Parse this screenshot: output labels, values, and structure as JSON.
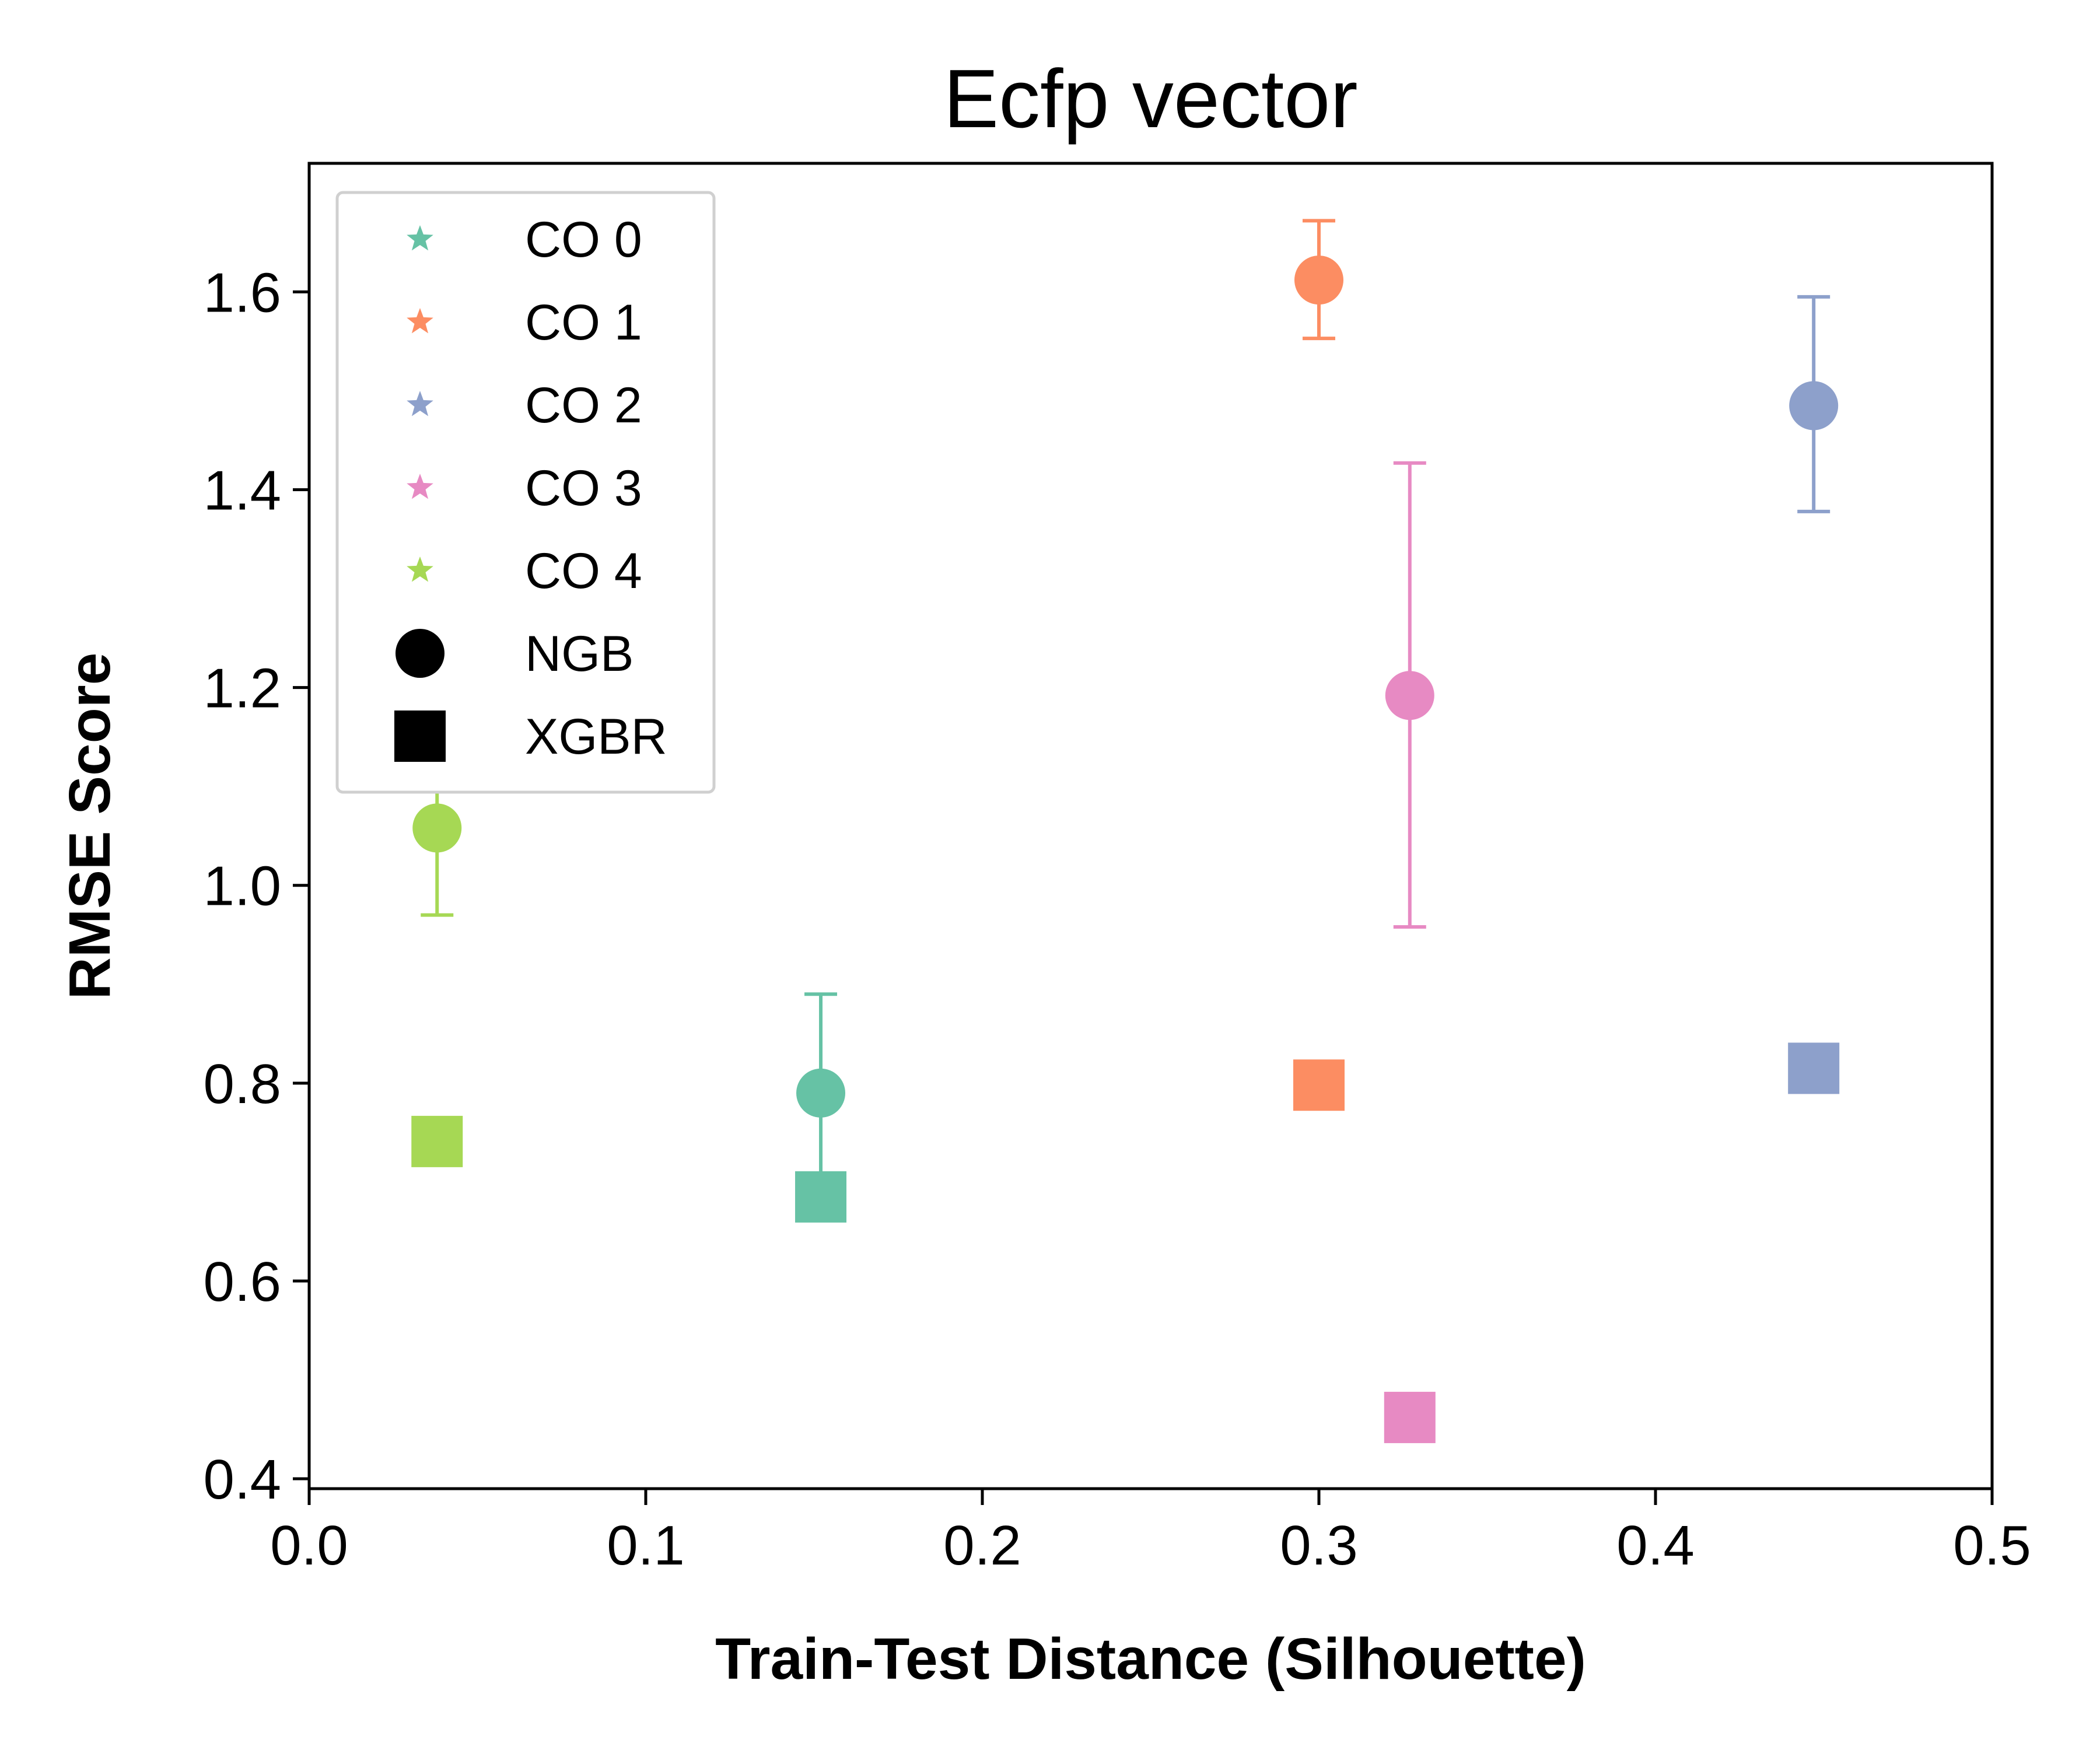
{
  "chart_data": {
    "type": "scatter",
    "title": "Ecfp vector",
    "xlabel": "Train-Test Distance (Silhouette)",
    "ylabel": "RMSE Score",
    "xlim": [
      0.0,
      0.5
    ],
    "ylim": [
      0.39,
      1.73
    ],
    "xticks": [
      "0.0",
      "0.1",
      "0.2",
      "0.3",
      "0.4",
      "0.5"
    ],
    "yticks": [
      "0.4",
      "0.6",
      "0.8",
      "1.0",
      "1.2",
      "1.4",
      "1.6"
    ],
    "grid": false,
    "legend_position": "top-left",
    "series": [
      {
        "name": "CO 0",
        "color": "#66c2a5",
        "ngb": {
          "x": 0.152,
          "y": 0.79,
          "err_low": 0.69,
          "err_high": 0.89
        },
        "xgbr": {
          "x": 0.152,
          "y": 0.685
        }
      },
      {
        "name": "CO 1",
        "color": "#fc8d62",
        "ngb": {
          "x": 0.3,
          "y": 1.612,
          "err_low": 1.553,
          "err_high": 1.672
        },
        "xgbr": {
          "x": 0.3,
          "y": 0.798
        }
      },
      {
        "name": "CO 2",
        "color": "#8da0cb",
        "ngb": {
          "x": 0.447,
          "y": 1.485,
          "err_low": 1.378,
          "err_high": 1.595
        },
        "xgbr": {
          "x": 0.447,
          "y": 0.815
        }
      },
      {
        "name": "CO 3",
        "color": "#e78ac3",
        "ngb": {
          "x": 0.327,
          "y": 1.192,
          "err_low": 0.958,
          "err_high": 1.427
        },
        "xgbr": {
          "x": 0.327,
          "y": 0.462
        }
      },
      {
        "name": "CO 4",
        "color": "#a6d854",
        "ngb": {
          "x": 0.038,
          "y": 1.058,
          "err_low": 0.97,
          "err_high": 1.147
        },
        "xgbr": {
          "x": 0.038,
          "y": 0.741
        }
      }
    ],
    "legend": {
      "entries": [
        {
          "label": "CO 0",
          "marker": "star-icon",
          "color": "#66c2a5"
        },
        {
          "label": "CO 1",
          "marker": "star-icon",
          "color": "#fc8d62"
        },
        {
          "label": "CO 2",
          "marker": "star-icon",
          "color": "#8da0cb"
        },
        {
          "label": "CO 3",
          "marker": "star-icon",
          "color": "#e78ac3"
        },
        {
          "label": "CO 4",
          "marker": "star-icon",
          "color": "#a6d854"
        },
        {
          "label": "NGB",
          "marker": "circle-icon",
          "color": "#000000"
        },
        {
          "label": "XGBR",
          "marker": "square-icon",
          "color": "#000000"
        }
      ]
    }
  }
}
